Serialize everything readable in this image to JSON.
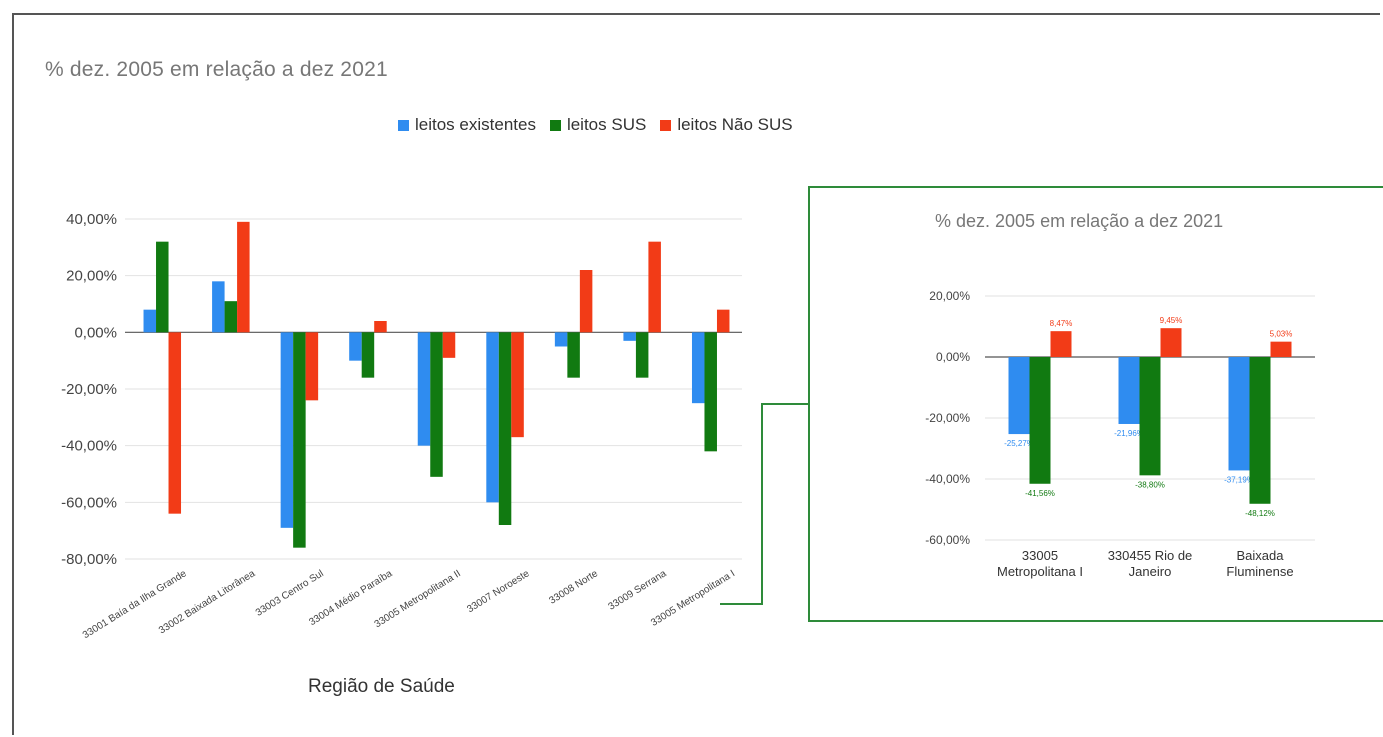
{
  "colors": {
    "leitos_existentes": "#2f8cf0",
    "leitos_sus": "#117a11",
    "leitos_nao_sus": "#f23b17",
    "inset_border": "#2e8b3a"
  },
  "chart_data": [
    {
      "type": "bar",
      "title": "% dez. 2005 em relação a  dez 2021",
      "xlabel": "Região de Saúde",
      "ylabel": "",
      "legend_position": "top-center",
      "ylim": [
        -80,
        40
      ],
      "yticks": [
        "40,00%",
        "20,00%",
        "0,00%",
        "-20,00%",
        "-40,00%",
        "-60,00%",
        "-80,00%"
      ],
      "ytick_values": [
        40,
        20,
        0,
        -20,
        -40,
        -60,
        -80
      ],
      "grid": true,
      "categories": [
        "33001 Baía da Ilha Grande",
        "33002 Baixada Litorânea",
        "33003 Centro Sul",
        "33004 Médio Paraíba",
        "33005 Metropolitana II",
        "33007 Noroeste",
        "33008 Norte",
        "33009 Serrana",
        "33005 Metropolitana I"
      ],
      "series": [
        {
          "name": "leitos existentes",
          "values": [
            8,
            18,
            -69,
            -10,
            -40,
            -60,
            -5,
            -3,
            -25
          ]
        },
        {
          "name": "leitos SUS",
          "values": [
            32,
            11,
            -76,
            -16,
            -51,
            -68,
            -16,
            -16,
            -42
          ]
        },
        {
          "name": "leitos Não SUS",
          "values": [
            -64,
            39,
            -24,
            4,
            -9,
            -37,
            22,
            32,
            8
          ]
        }
      ]
    },
    {
      "type": "bar",
      "title": "% dez. 2005 em relação a  dez 2021",
      "ylim": [
        -60,
        20
      ],
      "yticks": [
        "20,00%",
        "0,00%",
        "-20,00%",
        "-40,00%",
        "-60,00%"
      ],
      "ytick_values": [
        20,
        0,
        -20,
        -40,
        -60
      ],
      "grid": true,
      "categories": [
        [
          "33005",
          "Metropolitana I"
        ],
        [
          "330455 Rio de",
          "Janeiro"
        ],
        [
          "Baixada",
          "Fluminense"
        ]
      ],
      "series": [
        {
          "name": "leitos existentes",
          "values": [
            -25.27,
            -21.96,
            -37.19
          ],
          "labels": [
            "-25,27%",
            "-21,96%",
            "-37,19%"
          ]
        },
        {
          "name": "leitos SUS",
          "values": [
            -41.56,
            -38.8,
            -48.12
          ],
          "labels": [
            "-41,56%",
            "-38,80%",
            "-48,12%"
          ]
        },
        {
          "name": "leitos Não SUS",
          "values": [
            8.47,
            9.45,
            5.03
          ],
          "labels": [
            "8,47%",
            "9,45%",
            "5,03%"
          ]
        }
      ]
    }
  ]
}
